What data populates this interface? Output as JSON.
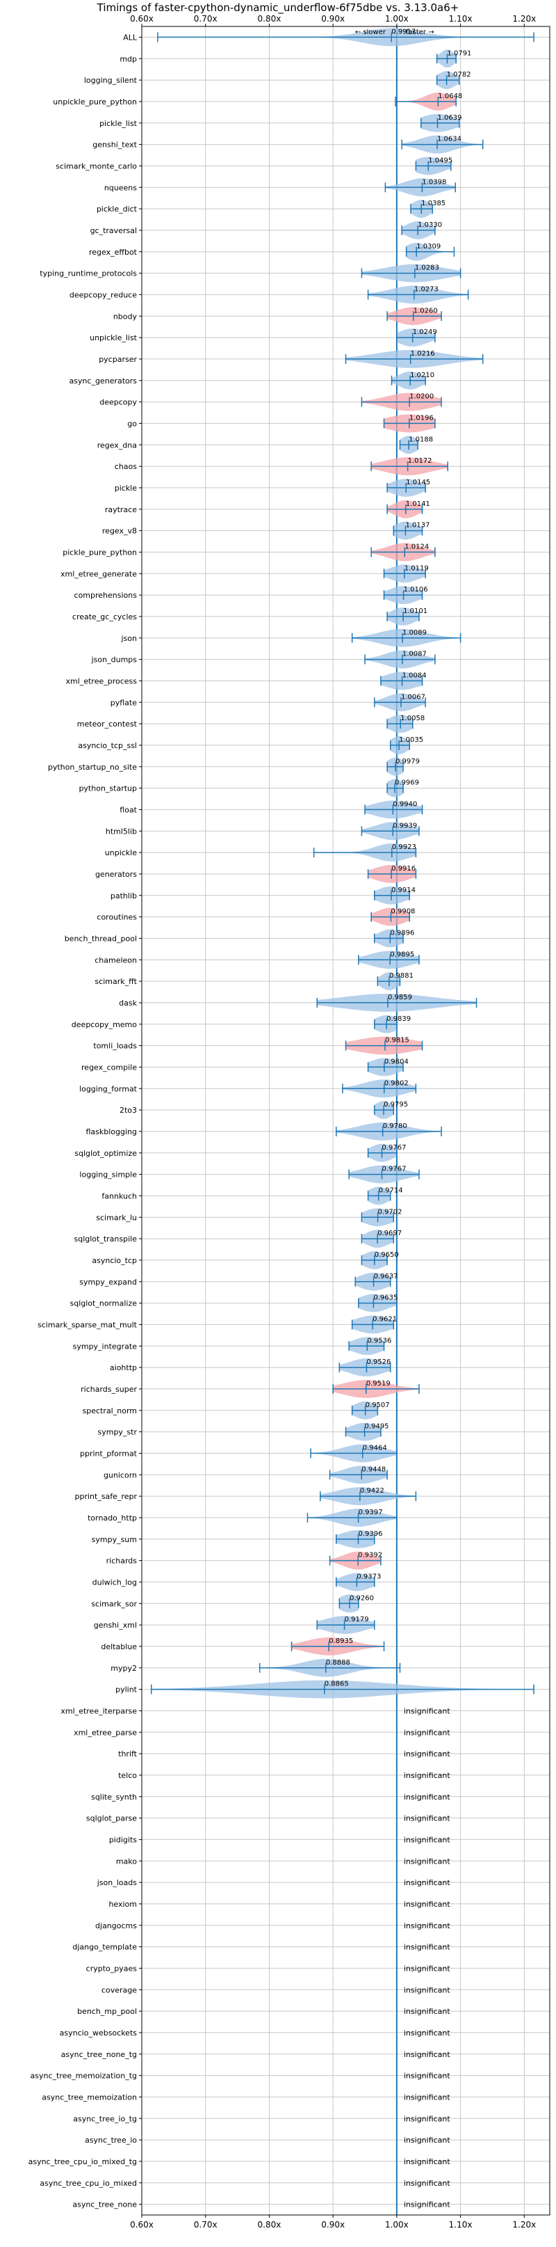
{
  "chart_data": {
    "type": "violin",
    "title": "Timings of faster-cpython-dynamic_underflow-6f75dbe vs. 3.13.0a6+",
    "direction_labels": {
      "slower": "← slower",
      "faster": "faster →"
    },
    "xlim": [
      0.6,
      1.24
    ],
    "xticks": [
      0.6,
      0.7,
      0.8,
      0.9,
      1.0,
      1.1,
      1.2
    ],
    "xtick_labels": [
      "0.60x",
      "0.70x",
      "0.80x",
      "0.90x",
      "1.00x",
      "1.10x",
      "1.20x"
    ],
    "grid": true,
    "insignificant_label": "insignificant",
    "colors": {
      "faster": "#9ec2e6",
      "slower": "#f4a3a8",
      "line": "#1f77b4"
    },
    "benchmarks": [
      {
        "name": "ALL",
        "value": 0.9917,
        "lo": 0.625,
        "hi": 1.215,
        "width": 0.05,
        "color": "faster"
      },
      {
        "name": "mdp",
        "value": 1.0791,
        "lo": 1.063,
        "hi": 1.093,
        "width": 0.012,
        "color": "faster"
      },
      {
        "name": "logging_silent",
        "value": 1.0782,
        "lo": 1.063,
        "hi": 1.098,
        "width": 0.016,
        "color": "faster"
      },
      {
        "name": "unpickle_pure_python",
        "value": 1.0648,
        "lo": 0.998,
        "hi": 1.093,
        "width": 0.022,
        "color": "slower"
      },
      {
        "name": "pickle_list",
        "value": 1.0639,
        "lo": 1.038,
        "hi": 1.098,
        "width": 0.03,
        "color": "faster"
      },
      {
        "name": "genshi_text",
        "value": 1.0634,
        "lo": 1.008,
        "hi": 1.135,
        "width": 0.03,
        "color": "faster"
      },
      {
        "name": "scimark_monte_carlo",
        "value": 1.0495,
        "lo": 1.03,
        "hi": 1.085,
        "width": 0.026,
        "color": "faster"
      },
      {
        "name": "nqueens",
        "value": 1.0398,
        "lo": 0.982,
        "hi": 1.092,
        "width": 0.03,
        "color": "faster"
      },
      {
        "name": "pickle_dict",
        "value": 1.0385,
        "lo": 1.022,
        "hi": 1.056,
        "width": 0.016,
        "color": "faster"
      },
      {
        "name": "gc_traversal",
        "value": 1.033,
        "lo": 1.008,
        "hi": 1.06,
        "width": 0.02,
        "color": "faster"
      },
      {
        "name": "regex_effbot",
        "value": 1.0309,
        "lo": 1.015,
        "hi": 1.09,
        "width": 0.02,
        "color": "faster"
      },
      {
        "name": "typing_runtime_protocols",
        "value": 1.0283,
        "lo": 0.945,
        "hi": 1.1,
        "width": 0.05,
        "color": "faster"
      },
      {
        "name": "deepcopy_reduce",
        "value": 1.0273,
        "lo": 0.955,
        "hi": 1.112,
        "width": 0.04,
        "color": "faster"
      },
      {
        "name": "nbody",
        "value": 1.026,
        "lo": 0.985,
        "hi": 1.07,
        "width": 0.03,
        "color": "slower"
      },
      {
        "name": "unpickle_list",
        "value": 1.0249,
        "lo": 1.0,
        "hi": 1.06,
        "width": 0.025,
        "color": "faster"
      },
      {
        "name": "pycparser",
        "value": 1.0216,
        "lo": 0.92,
        "hi": 1.135,
        "width": 0.06,
        "color": "faster"
      },
      {
        "name": "async_generators",
        "value": 1.021,
        "lo": 0.992,
        "hi": 1.045,
        "width": 0.02,
        "color": "faster"
      },
      {
        "name": "deepcopy",
        "value": 1.02,
        "lo": 0.945,
        "hi": 1.07,
        "width": 0.04,
        "color": "slower"
      },
      {
        "name": "go",
        "value": 1.0196,
        "lo": 0.98,
        "hi": 1.06,
        "width": 0.04,
        "color": "slower"
      },
      {
        "name": "regex_dna",
        "value": 1.0188,
        "lo": 1.005,
        "hi": 1.033,
        "width": 0.015,
        "color": "faster"
      },
      {
        "name": "chaos",
        "value": 1.0172,
        "lo": 0.96,
        "hi": 1.08,
        "width": 0.04,
        "color": "slower"
      },
      {
        "name": "pickle",
        "value": 1.0145,
        "lo": 0.985,
        "hi": 1.045,
        "width": 0.025,
        "color": "faster"
      },
      {
        "name": "raytrace",
        "value": 1.0141,
        "lo": 0.985,
        "hi": 1.04,
        "width": 0.02,
        "color": "slower"
      },
      {
        "name": "regex_v8",
        "value": 1.0137,
        "lo": 0.995,
        "hi": 1.04,
        "width": 0.02,
        "color": "faster"
      },
      {
        "name": "pickle_pure_python",
        "value": 1.0124,
        "lo": 0.96,
        "hi": 1.06,
        "width": 0.03,
        "color": "slower"
      },
      {
        "name": "xml_etree_generate",
        "value": 1.0119,
        "lo": 0.98,
        "hi": 1.045,
        "width": 0.025,
        "color": "faster"
      },
      {
        "name": "comprehensions",
        "value": 1.0106,
        "lo": 0.98,
        "hi": 1.04,
        "width": 0.025,
        "color": "faster"
      },
      {
        "name": "create_gc_cycles",
        "value": 1.0101,
        "lo": 0.985,
        "hi": 1.035,
        "width": 0.02,
        "color": "faster"
      },
      {
        "name": "json",
        "value": 1.0089,
        "lo": 0.93,
        "hi": 1.1,
        "width": 0.04,
        "color": "faster"
      },
      {
        "name": "json_dumps",
        "value": 1.0087,
        "lo": 0.95,
        "hi": 1.06,
        "width": 0.03,
        "color": "faster"
      },
      {
        "name": "xml_etree_process",
        "value": 1.0084,
        "lo": 0.975,
        "hi": 1.04,
        "width": 0.03,
        "color": "faster"
      },
      {
        "name": "pyflate",
        "value": 1.0067,
        "lo": 0.965,
        "hi": 1.045,
        "width": 0.025,
        "color": "faster"
      },
      {
        "name": "meteor_contest",
        "value": 1.0058,
        "lo": 0.985,
        "hi": 1.025,
        "width": 0.02,
        "color": "faster"
      },
      {
        "name": "asyncio_tcp_ssl",
        "value": 1.0035,
        "lo": 0.99,
        "hi": 1.02,
        "width": 0.015,
        "color": "faster"
      },
      {
        "name": "python_startup_no_site",
        "value": 0.9979,
        "lo": 0.985,
        "hi": 1.01,
        "width": 0.015,
        "color": "faster"
      },
      {
        "name": "python_startup",
        "value": 0.9969,
        "lo": 0.985,
        "hi": 1.01,
        "width": 0.015,
        "color": "faster"
      },
      {
        "name": "float",
        "value": 0.994,
        "lo": 0.95,
        "hi": 1.04,
        "width": 0.035,
        "color": "faster"
      },
      {
        "name": "html5lib",
        "value": 0.9939,
        "lo": 0.945,
        "hi": 1.035,
        "width": 0.03,
        "color": "faster"
      },
      {
        "name": "unpickle",
        "value": 0.9923,
        "lo": 0.87,
        "hi": 1.03,
        "width": 0.03,
        "color": "faster"
      },
      {
        "name": "generators",
        "value": 0.9916,
        "lo": 0.955,
        "hi": 1.03,
        "width": 0.03,
        "color": "slower"
      },
      {
        "name": "pathlib",
        "value": 0.9914,
        "lo": 0.965,
        "hi": 1.02,
        "width": 0.025,
        "color": "faster"
      },
      {
        "name": "coroutines",
        "value": 0.9908,
        "lo": 0.96,
        "hi": 1.02,
        "width": 0.025,
        "color": "slower"
      },
      {
        "name": "bench_thread_pool",
        "value": 0.9896,
        "lo": 0.965,
        "hi": 1.01,
        "width": 0.02,
        "color": "faster"
      },
      {
        "name": "chameleon",
        "value": 0.9895,
        "lo": 0.94,
        "hi": 1.035,
        "width": 0.035,
        "color": "faster"
      },
      {
        "name": "scimark_fft",
        "value": 0.9881,
        "lo": 0.97,
        "hi": 1.005,
        "width": 0.015,
        "color": "faster"
      },
      {
        "name": "dask",
        "value": 0.9859,
        "lo": 0.875,
        "hi": 1.125,
        "width": 0.08,
        "color": "faster"
      },
      {
        "name": "deepcopy_memo",
        "value": 0.9839,
        "lo": 0.965,
        "hi": 1.0,
        "width": 0.02,
        "color": "faster"
      },
      {
        "name": "tomli_loads",
        "value": 0.9815,
        "lo": 0.92,
        "hi": 1.04,
        "width": 0.05,
        "color": "slower"
      },
      {
        "name": "regex_compile",
        "value": 0.9804,
        "lo": 0.955,
        "hi": 1.01,
        "width": 0.025,
        "color": "faster"
      },
      {
        "name": "logging_format",
        "value": 0.9802,
        "lo": 0.915,
        "hi": 1.03,
        "width": 0.035,
        "color": "faster"
      },
      {
        "name": "2to3",
        "value": 0.9795,
        "lo": 0.965,
        "hi": 0.995,
        "width": 0.015,
        "color": "faster"
      },
      {
        "name": "flaskblogging",
        "value": 0.978,
        "lo": 0.905,
        "hi": 1.07,
        "width": 0.04,
        "color": "faster"
      },
      {
        "name": "sqlglot_optimize",
        "value": 0.9767,
        "lo": 0.955,
        "hi": 1.0,
        "width": 0.02,
        "color": "faster"
      },
      {
        "name": "logging_simple",
        "value": 0.9767,
        "lo": 0.925,
        "hi": 1.035,
        "width": 0.035,
        "color": "faster"
      },
      {
        "name": "fannkuch",
        "value": 0.9714,
        "lo": 0.955,
        "hi": 0.99,
        "width": 0.018,
        "color": "faster"
      },
      {
        "name": "scimark_lu",
        "value": 0.9702,
        "lo": 0.945,
        "hi": 0.995,
        "width": 0.025,
        "color": "faster"
      },
      {
        "name": "sqlglot_transpile",
        "value": 0.9697,
        "lo": 0.945,
        "hi": 0.995,
        "width": 0.02,
        "color": "faster"
      },
      {
        "name": "asyncio_tcp",
        "value": 0.965,
        "lo": 0.945,
        "hi": 0.985,
        "width": 0.02,
        "color": "faster"
      },
      {
        "name": "sympy_expand",
        "value": 0.9637,
        "lo": 0.935,
        "hi": 0.99,
        "width": 0.025,
        "color": "faster"
      },
      {
        "name": "sqlglot_normalize",
        "value": 0.9635,
        "lo": 0.94,
        "hi": 1.0,
        "width": 0.025,
        "color": "faster"
      },
      {
        "name": "scimark_sparse_mat_mult",
        "value": 0.9621,
        "lo": 0.93,
        "hi": 0.995,
        "width": 0.03,
        "color": "faster"
      },
      {
        "name": "sympy_integrate",
        "value": 0.9536,
        "lo": 0.925,
        "hi": 0.98,
        "width": 0.025,
        "color": "faster"
      },
      {
        "name": "aiohttp",
        "value": 0.9526,
        "lo": 0.91,
        "hi": 0.99,
        "width": 0.03,
        "color": "faster"
      },
      {
        "name": "richards_super",
        "value": 0.9519,
        "lo": 0.9,
        "hi": 1.035,
        "width": 0.04,
        "color": "slower"
      },
      {
        "name": "spectral_norm",
        "value": 0.9507,
        "lo": 0.93,
        "hi": 0.97,
        "width": 0.02,
        "color": "faster"
      },
      {
        "name": "sympy_str",
        "value": 0.9495,
        "lo": 0.92,
        "hi": 0.975,
        "width": 0.025,
        "color": "faster"
      },
      {
        "name": "pprint_pformat",
        "value": 0.9464,
        "lo": 0.865,
        "hi": 1.0,
        "width": 0.035,
        "color": "faster"
      },
      {
        "name": "gunicorn",
        "value": 0.9448,
        "lo": 0.895,
        "hi": 0.985,
        "width": 0.03,
        "color": "faster"
      },
      {
        "name": "pprint_safe_repr",
        "value": 0.9422,
        "lo": 0.88,
        "hi": 1.03,
        "width": 0.04,
        "color": "faster"
      },
      {
        "name": "tornado_http",
        "value": 0.9397,
        "lo": 0.86,
        "hi": 1.0,
        "width": 0.035,
        "color": "faster"
      },
      {
        "name": "sympy_sum",
        "value": 0.9396,
        "lo": 0.905,
        "hi": 0.965,
        "width": 0.03,
        "color": "faster"
      },
      {
        "name": "richards",
        "value": 0.9392,
        "lo": 0.895,
        "hi": 0.975,
        "width": 0.025,
        "color": "slower"
      },
      {
        "name": "dulwich_log",
        "value": 0.9373,
        "lo": 0.905,
        "hi": 0.965,
        "width": 0.025,
        "color": "faster"
      },
      {
        "name": "scimark_sor",
        "value": 0.926,
        "lo": 0.91,
        "hi": 0.94,
        "width": 0.02,
        "color": "faster"
      },
      {
        "name": "genshi_xml",
        "value": 0.9179,
        "lo": 0.875,
        "hi": 0.965,
        "width": 0.035,
        "color": "faster"
      },
      {
        "name": "deltablue",
        "value": 0.8935,
        "lo": 0.835,
        "hi": 0.98,
        "width": 0.04,
        "color": "slower"
      },
      {
        "name": "mypy2",
        "value": 0.8888,
        "lo": 0.785,
        "hi": 1.005,
        "width": 0.04,
        "color": "faster"
      },
      {
        "name": "pylint",
        "value": 0.8865,
        "lo": 0.615,
        "hi": 1.215,
        "width": 0.12,
        "color": "faster"
      },
      {
        "name": "xml_etree_iterparse",
        "value": null
      },
      {
        "name": "xml_etree_parse",
        "value": null
      },
      {
        "name": "thrift",
        "value": null
      },
      {
        "name": "telco",
        "value": null
      },
      {
        "name": "sqlite_synth",
        "value": null
      },
      {
        "name": "sqlglot_parse",
        "value": null
      },
      {
        "name": "pidigits",
        "value": null
      },
      {
        "name": "mako",
        "value": null
      },
      {
        "name": "json_loads",
        "value": null
      },
      {
        "name": "hexiom",
        "value": null
      },
      {
        "name": "djangocms",
        "value": null
      },
      {
        "name": "django_template",
        "value": null
      },
      {
        "name": "crypto_pyaes",
        "value": null
      },
      {
        "name": "coverage",
        "value": null
      },
      {
        "name": "bench_mp_pool",
        "value": null
      },
      {
        "name": "asyncio_websockets",
        "value": null
      },
      {
        "name": "async_tree_none_tg",
        "value": null
      },
      {
        "name": "async_tree_memoization_tg",
        "value": null
      },
      {
        "name": "async_tree_memoization",
        "value": null
      },
      {
        "name": "async_tree_io_tg",
        "value": null
      },
      {
        "name": "async_tree_io",
        "value": null
      },
      {
        "name": "async_tree_cpu_io_mixed_tg",
        "value": null
      },
      {
        "name": "async_tree_cpu_io_mixed",
        "value": null
      },
      {
        "name": "async_tree_none",
        "value": null
      }
    ]
  }
}
